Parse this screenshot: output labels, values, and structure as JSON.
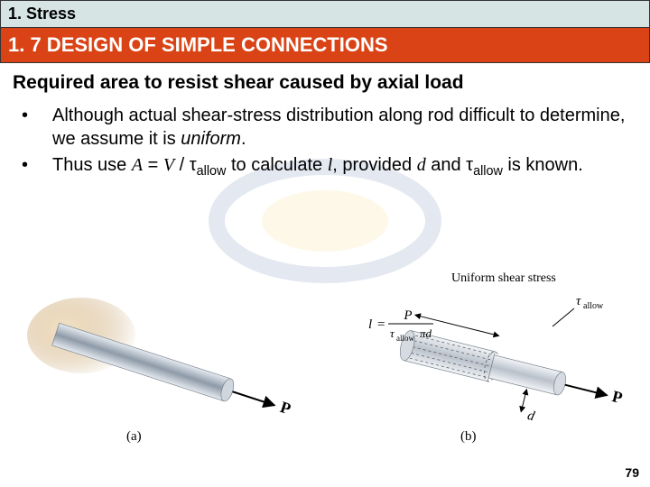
{
  "chapter": {
    "label": "1. Stress"
  },
  "section": {
    "label": "1. 7 DESIGN OF SIMPLE CONNECTIONS"
  },
  "subtitle": "Required area to resist shear caused by axial load",
  "bullets": [
    {
      "marker": "•",
      "html_parts": [
        {
          "t": "Although actual shear-stress distribution along rod difficult to determine, we assume it is "
        },
        {
          "t": "uniform",
          "cls": "italic"
        },
        {
          "t": "."
        }
      ]
    },
    {
      "marker": "•",
      "html_parts": [
        {
          "t": "Thus use "
        },
        {
          "t": "A",
          "cls": "serif-italic"
        },
        {
          "t": " = "
        },
        {
          "t": "V",
          "cls": "serif-italic"
        },
        {
          "t": " / τ"
        },
        {
          "t": "allow",
          "cls": "sub"
        },
        {
          "t": " to calculate "
        },
        {
          "t": "l",
          "cls": "serif-italic"
        },
        {
          "t": ", provided "
        },
        {
          "t": "d",
          "cls": "serif-italic"
        },
        {
          "t": " and τ"
        },
        {
          "t": "allow",
          "cls": "sub"
        },
        {
          "t": " is known."
        }
      ]
    }
  ],
  "figure": {
    "panel_a": {
      "label": "(a)",
      "force_label": "P",
      "rod_body_color": "#9aa6b3",
      "rod_highlight_color": "#d8dee6",
      "embed_glow_color": "#d9b98a"
    },
    "panel_b": {
      "label": "(b)",
      "force_label": "P",
      "shear_caption": "Uniform shear stress",
      "tau_label": "τ",
      "tau_sub": "allow",
      "formula_top": "P",
      "formula_bottom_tau": "τ",
      "formula_bottom_tau_sub": "allow",
      "formula_bottom_pid": "πd",
      "length_label": "l",
      "diameter_label": "d",
      "rod_body_color": "#c5cbd3",
      "rod_highlight_color": "#eef1f5",
      "section_fill": "#bfc6cf"
    },
    "text_color": "#000000",
    "arrow_color": "#000000"
  },
  "page_number": "79",
  "colors": {
    "chapter_bg": "#d6e4e4",
    "section_bg": "#d94315",
    "section_fg": "#ffffff"
  }
}
